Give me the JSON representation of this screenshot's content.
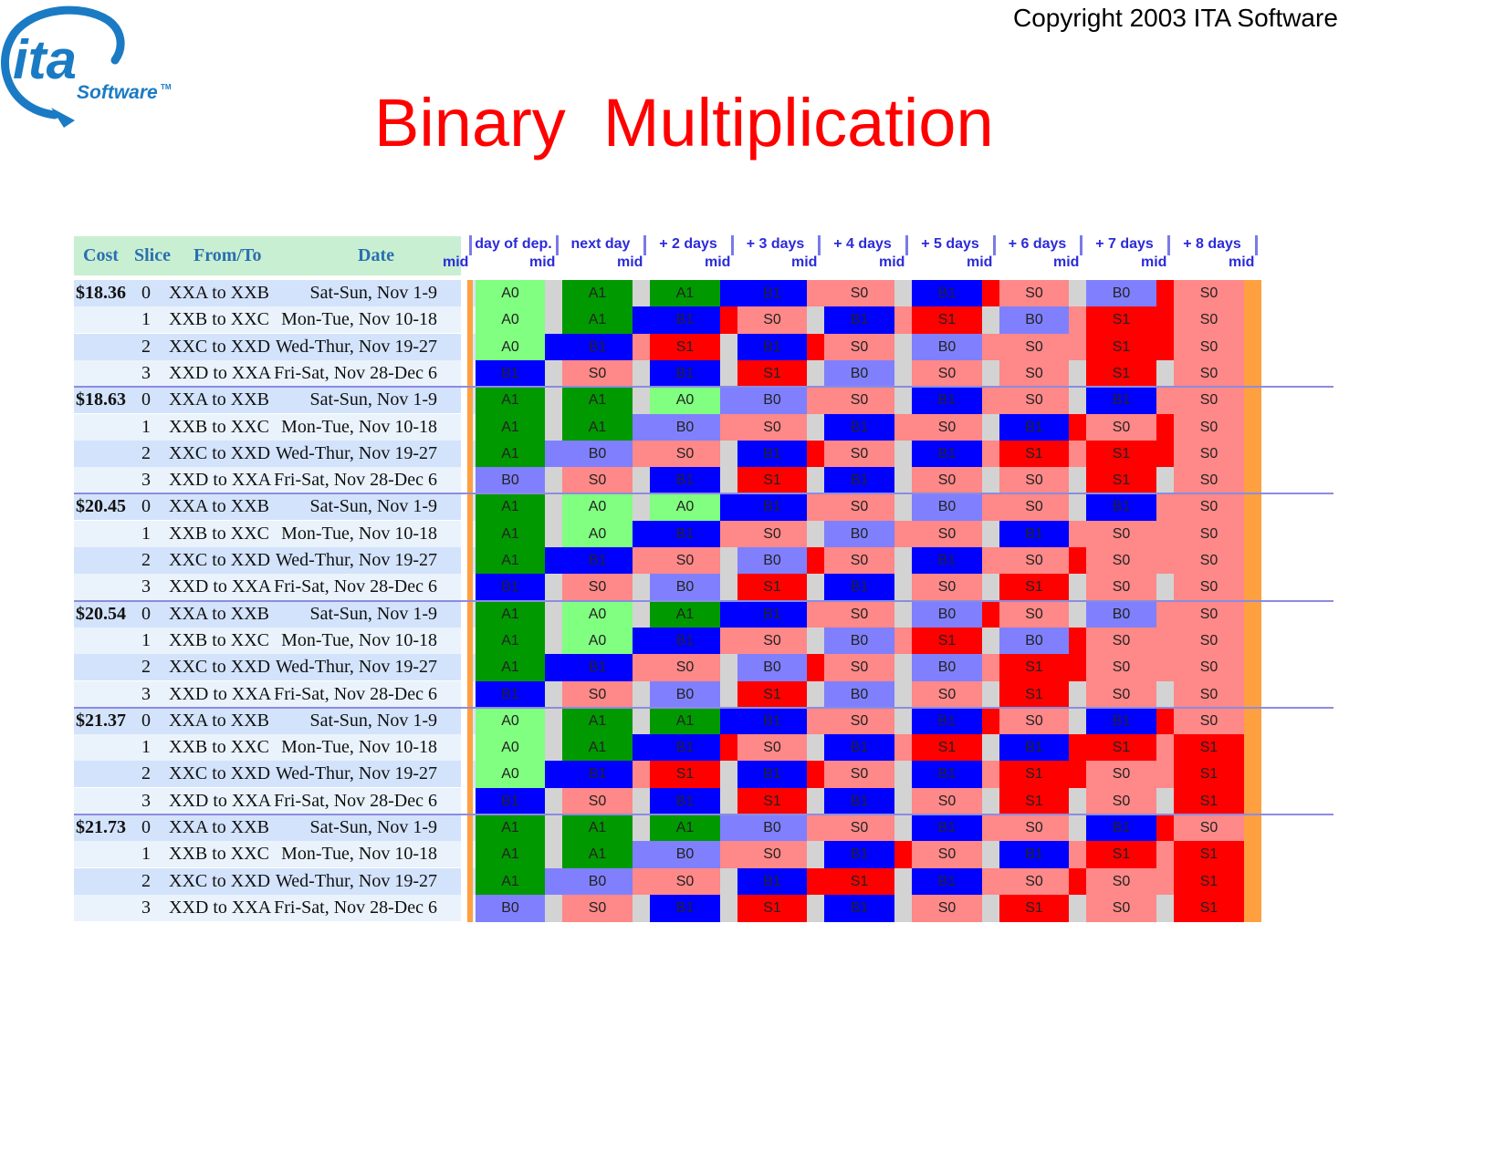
{
  "copyright": "Copyright 2003 ITA Software",
  "logo": {
    "text_main": "ita",
    "text_sub": "Software",
    "text_tm": "TM",
    "color": "#1a7bc4"
  },
  "title": "Binary  Multiplication",
  "table": {
    "headers": [
      "Cost",
      "Slice",
      "From/To",
      "Date"
    ],
    "column_headers": [
      "day of dep.",
      "next day",
      "+ 2 days",
      "+ 3 days",
      "+ 4 days",
      "+ 5 days",
      "+ 6 days",
      "+ 7 days",
      "+ 8 days"
    ],
    "mid_label": "mid",
    "routes": [
      "XXA to XXB",
      "XXB to XXC",
      "XXC to XXD",
      "XXD to XXA"
    ],
    "dates": [
      "Sat-Sun, Nov 1-9",
      "Mon-Tue, Nov 10-18",
      "Wed-Thur, Nov 19-27",
      "Fri-Sat, Nov 28-Dec 6"
    ],
    "slices": [
      "0",
      "1",
      "2",
      "3"
    ],
    "costs": [
      "$18.36",
      "$18.63",
      "$20.45",
      "$20.54",
      "$21.37",
      "$21.73"
    ],
    "colors": {
      "A1": "#009900",
      "A0": "#80ff80",
      "B1": "#0000ff",
      "B0": "#8080ff",
      "S1": "#ff0000",
      "S0": "#ff8888",
      "gap": "#d3d3d3",
      "mid_bar": "#ffa040"
    },
    "grid": [
      [
        [
          "A0",
          "A1",
          "A1",
          "B1",
          "S0",
          "B1",
          "S0",
          "B0",
          "S0"
        ],
        [
          "A0",
          "A1",
          "B1",
          "S0",
          "B1",
          "S1",
          "B0",
          "S1",
          "S0"
        ],
        [
          "A0",
          "B1",
          "S1",
          "B1",
          "S0",
          "B0",
          "S0",
          "S1",
          "S0"
        ],
        [
          "B1",
          "S0",
          "B1",
          "S1",
          "B0",
          "S0",
          "S0",
          "S1",
          "S0"
        ]
      ],
      [
        [
          "A1",
          "A1",
          "A0",
          "B0",
          "S0",
          "B1",
          "S0",
          "B1",
          "S0"
        ],
        [
          "A1",
          "A1",
          "B0",
          "S0",
          "B1",
          "S0",
          "B1",
          "S0",
          "S0"
        ],
        [
          "A1",
          "B0",
          "S0",
          "B1",
          "S0",
          "B1",
          "S1",
          "S1",
          "S0"
        ],
        [
          "B0",
          "S0",
          "B1",
          "S1",
          "B1",
          "S0",
          "S0",
          "S1",
          "S0"
        ]
      ],
      [
        [
          "A1",
          "A0",
          "A0",
          "B1",
          "S0",
          "B0",
          "S0",
          "B1",
          "S0"
        ],
        [
          "A1",
          "A0",
          "B1",
          "S0",
          "B0",
          "S0",
          "B1",
          "S0",
          "S0"
        ],
        [
          "A1",
          "B1",
          "S0",
          "B0",
          "S0",
          "B1",
          "S0",
          "S0",
          "S0"
        ],
        [
          "B1",
          "S0",
          "B0",
          "S1",
          "B1",
          "S0",
          "S1",
          "S0",
          "S0"
        ]
      ],
      [
        [
          "A1",
          "A0",
          "A1",
          "B1",
          "S0",
          "B0",
          "S0",
          "B0",
          "S0"
        ],
        [
          "A1",
          "A0",
          "B1",
          "S0",
          "B0",
          "S1",
          "B0",
          "S0",
          "S0"
        ],
        [
          "A1",
          "B1",
          "S0",
          "B0",
          "S0",
          "B0",
          "S1",
          "S0",
          "S0"
        ],
        [
          "B1",
          "S0",
          "B0",
          "S1",
          "B0",
          "S0",
          "S1",
          "S0",
          "S0"
        ]
      ],
      [
        [
          "A0",
          "A1",
          "A1",
          "B1",
          "S0",
          "B1",
          "S0",
          "B1",
          "S0"
        ],
        [
          "A0",
          "A1",
          "B1",
          "S0",
          "B1",
          "S1",
          "B1",
          "S1",
          "S1"
        ],
        [
          "A0",
          "B1",
          "S1",
          "B1",
          "S0",
          "B1",
          "S1",
          "S0",
          "S1"
        ],
        [
          "B1",
          "S0",
          "B1",
          "S1",
          "B1",
          "S0",
          "S1",
          "S0",
          "S1"
        ]
      ],
      [
        [
          "A1",
          "A1",
          "A1",
          "B0",
          "S0",
          "B1",
          "S0",
          "B1",
          "S0"
        ],
        [
          "A1",
          "A1",
          "B0",
          "S0",
          "B1",
          "S0",
          "B1",
          "S1",
          "S1"
        ],
        [
          "A1",
          "B0",
          "S0",
          "B1",
          "S1",
          "B1",
          "S0",
          "S0",
          "S1"
        ],
        [
          "B0",
          "S0",
          "B1",
          "S1",
          "B1",
          "S0",
          "S1",
          "S0",
          "S1"
        ]
      ]
    ]
  }
}
